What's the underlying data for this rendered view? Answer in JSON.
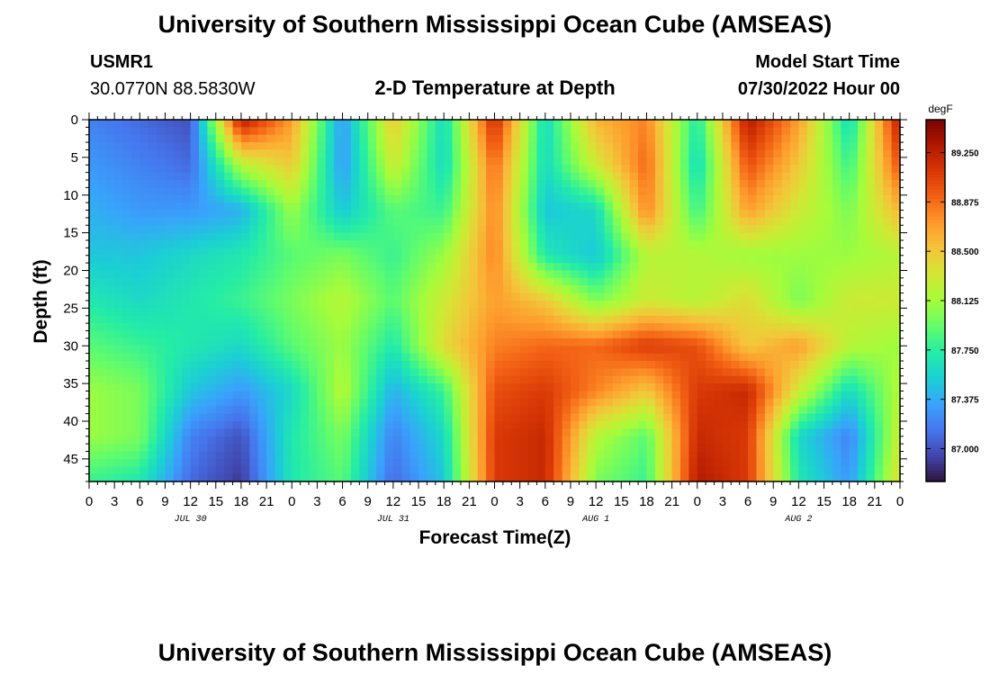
{
  "chart_data": {
    "type": "heatmap",
    "title": "University of Southern Mississippi Ocean Cube (AMSEAS)",
    "subtitle": "2-D Temperature at Depth",
    "station": {
      "name": "USMR1",
      "coords": "30.0770N  88.5830W"
    },
    "model_start": {
      "label": "Model Start Time",
      "value": "07/30/2022 Hour 00"
    },
    "footer_title": "University of Southern Mississippi Ocean Cube (AMSEAS)",
    "xlabel": "Forecast Time(Z)",
    "ylabel": "Depth (ft)",
    "x_range_hours": [
      0,
      96
    ],
    "y_range_ft": [
      0,
      48
    ],
    "y_reversed": true,
    "x_ticks": [
      "0",
      "3",
      "6",
      "9",
      "12",
      "15",
      "18",
      "21",
      "0",
      "3",
      "6",
      "9",
      "12",
      "15",
      "18",
      "21",
      "0",
      "3",
      "6",
      "9",
      "12",
      "15",
      "18",
      "21",
      "0",
      "3",
      "6",
      "9",
      "12",
      "15",
      "18",
      "21",
      "0"
    ],
    "y_ticks": [
      "0",
      "5",
      "10",
      "15",
      "20",
      "25",
      "30",
      "35",
      "40",
      "45"
    ],
    "date_labels": [
      "JUL 30",
      "JUL 31",
      "AUG 1",
      "AUG 2"
    ],
    "colorbar": {
      "unit": "degF",
      "min": 86.75,
      "max": 89.5,
      "tick_labels": [
        "89.250",
        "88.875",
        "88.500",
        "88.125",
        "87.750",
        "87.375",
        "87.000"
      ],
      "colormap": [
        "#30123b",
        "#4145ab",
        "#4675ed",
        "#39a2fc",
        "#1bcfd4",
        "#24eca6",
        "#61fc6c",
        "#a4fc3b",
        "#d1e834",
        "#f3c63a",
        "#fe9b2d",
        "#f36315",
        "#d93806",
        "#b11901",
        "#7a0402"
      ]
    },
    "grid_hours": [
      0,
      6,
      12,
      18,
      24,
      30,
      36,
      42,
      48,
      54,
      60,
      66,
      72,
      78,
      84,
      90,
      96
    ],
    "grid_depths_ft": [
      0,
      6,
      12,
      18,
      24,
      30,
      36,
      42,
      48
    ],
    "temperature_degF": [
      [
        87.2,
        87.1,
        87.0,
        89.3,
        88.7,
        87.3,
        88.5,
        87.6,
        89.2,
        87.6,
        88.6,
        88.8,
        87.7,
        89.3,
        88.7,
        87.6,
        89.3
      ],
      [
        87.3,
        87.2,
        87.1,
        88.2,
        88.5,
        87.3,
        88.3,
        87.6,
        88.9,
        87.6,
        88.3,
        88.9,
        87.6,
        89.0,
        88.5,
        87.8,
        89.0
      ],
      [
        87.4,
        87.3,
        87.3,
        87.4,
        88.1,
        87.5,
        87.9,
        87.8,
        88.8,
        87.5,
        87.6,
        88.8,
        87.8,
        88.7,
        88.3,
        88.0,
        88.6
      ],
      [
        87.5,
        87.5,
        87.6,
        87.7,
        87.9,
        88.0,
        87.8,
        88.1,
        88.8,
        87.7,
        87.5,
        88.2,
        88.2,
        88.1,
        88.1,
        88.1,
        88.2
      ],
      [
        87.7,
        87.6,
        87.7,
        87.8,
        88.0,
        88.2,
        87.9,
        88.3,
        88.7,
        88.5,
        88.0,
        88.3,
        88.2,
        88.4,
        88.0,
        88.3,
        88.3
      ],
      [
        87.9,
        87.8,
        87.7,
        87.6,
        87.9,
        88.1,
        87.7,
        88.4,
        88.8,
        88.9,
        88.9,
        89.1,
        89.0,
        88.5,
        88.7,
        88.2,
        88.1
      ],
      [
        88.1,
        88.0,
        87.5,
        87.3,
        87.6,
        88.2,
        87.4,
        87.8,
        89.0,
        89.1,
        88.8,
        88.5,
        89.1,
        89.2,
        88.3,
        87.6,
        88.2
      ],
      [
        88.1,
        88.0,
        87.2,
        87.0,
        87.7,
        88.0,
        87.2,
        87.6,
        89.1,
        89.2,
        88.2,
        87.9,
        89.2,
        89.1,
        87.6,
        87.2,
        88.3
      ],
      [
        87.8,
        87.7,
        87.1,
        86.9,
        87.7,
        87.9,
        87.1,
        87.5,
        89.1,
        89.2,
        88.0,
        87.8,
        89.3,
        89.1,
        87.7,
        87.3,
        88.4
      ]
    ]
  }
}
